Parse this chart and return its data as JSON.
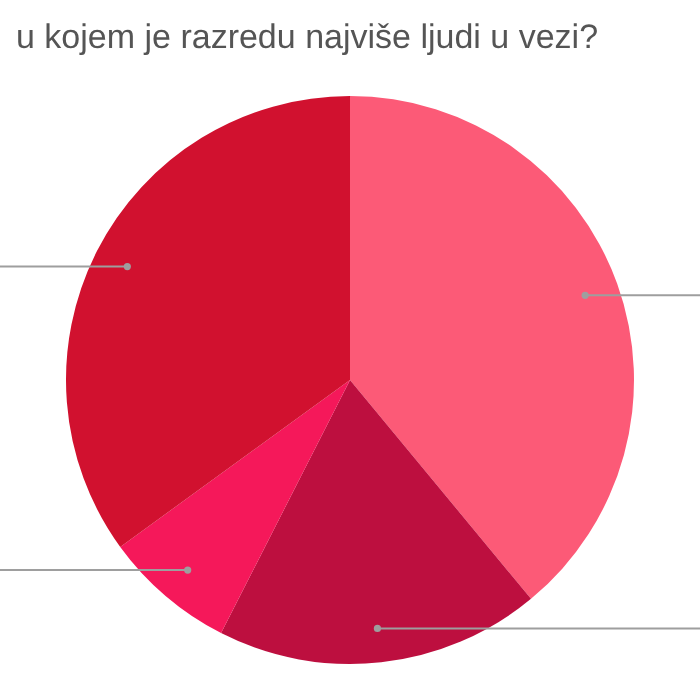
{
  "chart_data": {
    "type": "pie",
    "title": "u kojem je razredu najviše ljudi u vezi?",
    "categories": [
      null,
      null,
      null,
      null
    ],
    "values": [
      39,
      18.5,
      7.5,
      35
    ],
    "colors": [
      "#fc5a77",
      "#bd0f3f",
      "#f5185a",
      "#d1112f"
    ],
    "legend": false
  }
}
